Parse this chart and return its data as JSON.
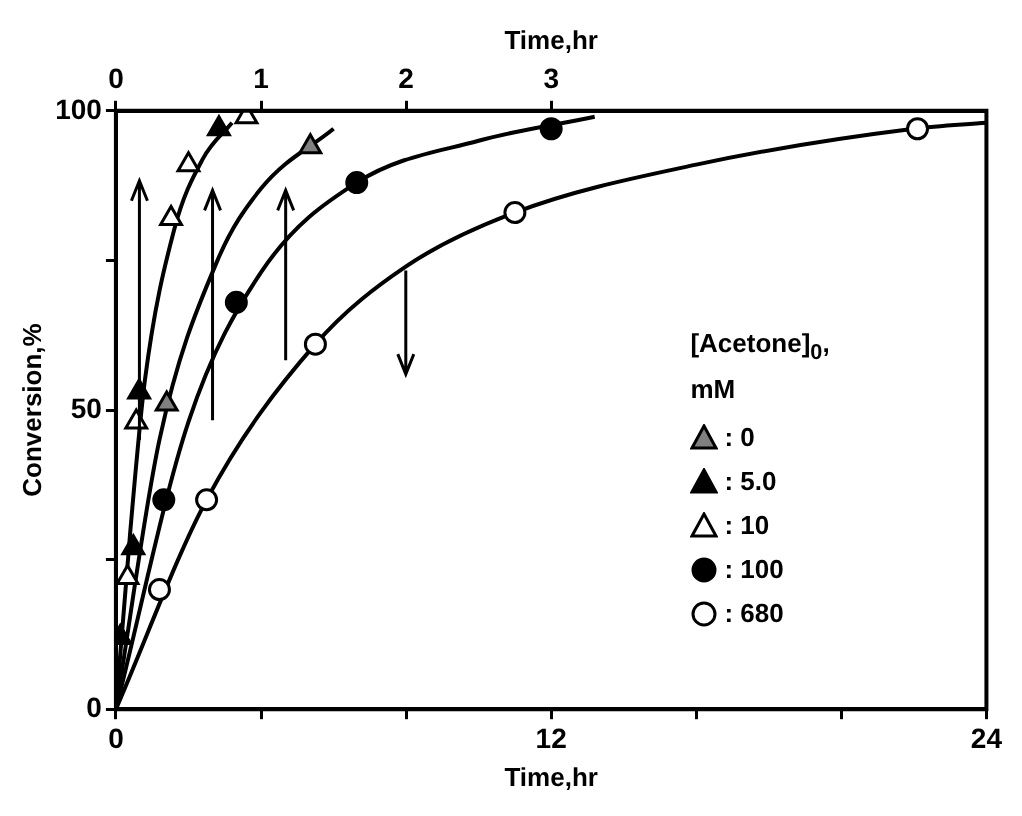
{
  "chart_data": {
    "type": "scatter",
    "xlabel": "Time,hr",
    "x2label": "Time,hr",
    "ylabel": "Conversion,%",
    "legend_title": "[Acetone]$_{0}$, mM",
    "xlim": [
      0,
      24
    ],
    "xticks": [
      0,
      {
        "value": 4,
        "label": null
      },
      {
        "value": 8,
        "label": null
      },
      12,
      {
        "value": 16,
        "label": null
      },
      {
        "value": 20,
        "label": null
      },
      24
    ],
    "x2lim": [
      0,
      6
    ],
    "x2ticks": [
      0,
      1,
      2,
      3
    ],
    "ylim": [
      0,
      100
    ],
    "yticks": [
      0,
      {
        "value": 25,
        "label": null
      },
      50,
      {
        "value": 75,
        "label": null
      },
      100
    ],
    "grid": false,
    "legend": "right",
    "series": [
      {
        "name": ": 0",
        "axis": "x2",
        "marker": "triangle",
        "color": "#808080",
        "x": [
          0.35,
          1.34
        ],
        "values": [
          51,
          94
        ]
      },
      {
        "name": ": 5.0",
        "axis": "x2",
        "marker": "triangle",
        "color": "#000000",
        "x": [
          0.03,
          0.12,
          0.16,
          0.71
        ],
        "values": [
          12,
          27,
          53,
          97
        ]
      },
      {
        "name": ": 10",
        "axis": "x2",
        "marker": "triangle",
        "color": "#ffffff",
        "x": [
          0.08,
          0.14,
          0.38,
          0.5,
          0.9
        ],
        "values": [
          22,
          48,
          82,
          91,
          99
        ]
      },
      {
        "name": ": 100",
        "axis": "x2",
        "marker": "circle",
        "color": "#000000",
        "x": [
          0.33,
          0.83,
          1.66,
          3.0
        ],
        "values": [
          35,
          68,
          88,
          97
        ]
      },
      {
        "name": ": 680",
        "marker": "circle",
        "color": "#ffffff",
        "x": [
          1.2,
          2.5,
          5.5,
          11.0,
          22.1
        ],
        "values": [
          20,
          35,
          61,
          83,
          97
        ]
      },
      {
        "type": "line",
        "axis": "x2",
        "marker": "none",
        "color": "#000000",
        "x": [
          0,
          0.1,
          0.2,
          0.4,
          0.6,
          0.8
        ],
        "values": [
          0,
          30,
          55,
          80,
          92,
          98
        ]
      },
      {
        "type": "line",
        "axis": "x2",
        "marker": "none",
        "color": "#000000",
        "x": [
          0,
          0.3,
          0.7,
          1.0,
          1.5
        ],
        "values": [
          0,
          45,
          75,
          87,
          97
        ]
      },
      {
        "type": "line",
        "axis": "x2",
        "marker": "none",
        "color": "#000000",
        "x": [
          0,
          0.5,
          1.0,
          1.66,
          2.5,
          3.3
        ],
        "values": [
          0,
          48,
          73,
          88,
          95,
          99
        ]
      },
      {
        "type": "line",
        "marker": "none",
        "color": "#000000",
        "x": [
          0,
          2.5,
          5.5,
          8,
          11,
          16,
          22,
          24
        ],
        "values": [
          0,
          35,
          61,
          74,
          83,
          91,
          97,
          98
        ]
      }
    ]
  }
}
